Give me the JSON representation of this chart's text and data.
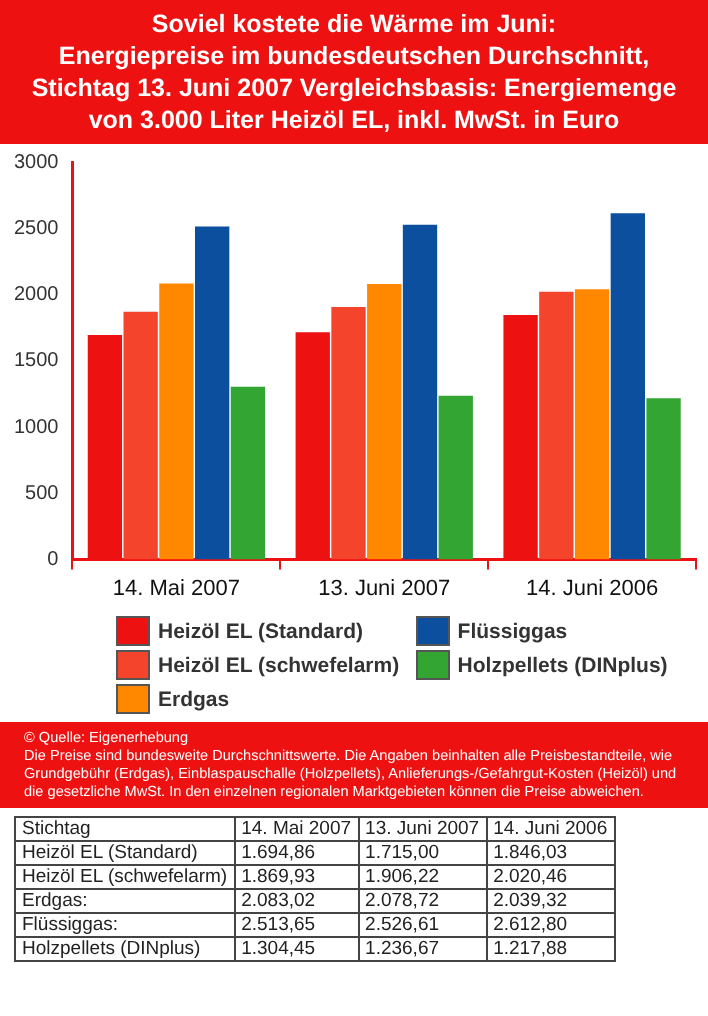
{
  "chart_data": {
    "type": "bar",
    "title": "Soviel kostete die Wärme im Juni:\nEnergiepreise im bundesdeutschen Durchschnitt,\nStichtag 13. Juni 2007 Vergleichsbasis: Energiemenge\nvon 3.000 Liter Heizöl EL, inkl. MwSt. in Euro",
    "categories": [
      "14. Mai 2007",
      "13. Juni 2007",
      "14. Juni 2006"
    ],
    "series": [
      {
        "name": "Heizöl EL (Standard)",
        "color": "#ee1111",
        "values": [
          1694.86,
          1715.0,
          1846.03
        ],
        "value_labels": [
          "1.694,86",
          "1.715,00",
          "1.846,03"
        ]
      },
      {
        "name": "Heizöl EL (schwefelarm)",
        "color": "#f4442c",
        "values": [
          1869.93,
          1906.22,
          2020.46
        ],
        "value_labels": [
          "1.869,93",
          "1.906,22",
          "2.020,46"
        ]
      },
      {
        "name": "Erdgas",
        "color": "#ff8800",
        "values": [
          2083.02,
          2078.72,
          2039.32
        ],
        "value_labels": [
          "2.083,02",
          "2.078,72",
          "2.039,32"
        ]
      },
      {
        "name": "Flüssiggas",
        "color": "#0b4f9e",
        "values": [
          2513.65,
          2526.61,
          2612.8
        ],
        "value_labels": [
          "2.513,65",
          "2.526,61",
          "2.612,80"
        ]
      },
      {
        "name": "Holzpellets (DINplus)",
        "color": "#33a532",
        "values": [
          1304.45,
          1236.67,
          1217.88
        ],
        "value_labels": [
          "1.304,45",
          "1.236,67",
          "1.217,88"
        ]
      }
    ],
    "ylim": [
      0,
      3000
    ],
    "yticks": [
      0,
      500,
      1000,
      1500,
      2000,
      2500,
      3000
    ],
    "legend": "bottom",
    "annotations": [
      "© Quelle: Eigenerhebung",
      "Die Preise sind bundesweite Durchschnittswerte. Die Angaben beinhalten alle Preisbestandteile, wie Grundgebühr (Erdgas), Einblaspauschalle (Holzpellets), Anlieferungs-/Gefahrgut-Kosten (Heizöl) und die gesetzliche MwSt. In den einzelnen regionalen Marktgebieten können die Preise abweichen.",
      "Stichtag",
      "Heizöl EL (Standard)",
      "Heizöl EL (schwefelarm)",
      "Erdgas:",
      "Flüssiggas:",
      "Holzpellets (DINplus)"
    ]
  }
}
